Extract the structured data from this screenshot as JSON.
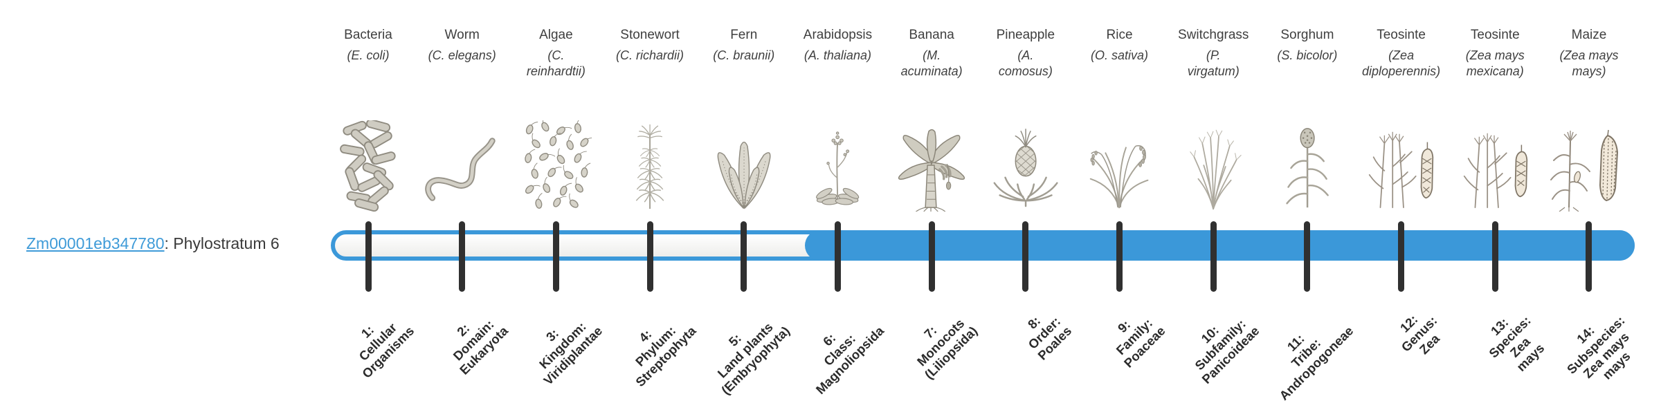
{
  "gene": {
    "id": "Zm00001eb347780",
    "annotation": ": Phylostratum 6",
    "phylostratum": 6
  },
  "colors": {
    "bar_fill": "#3b98d9",
    "track_top": "#ffffff",
    "track_bottom": "#ededeb",
    "tick": "#303030",
    "link": "#3f9bd8",
    "heading_text": "#3f3f3f",
    "label_text": "#2b2b2b"
  },
  "timeline": {
    "filled_from_stratum": 6,
    "strata": [
      {
        "number": 1,
        "organism": "Bacteria",
        "scientific_name": "(E. coli)",
        "icon": "bacteria-illustration",
        "tick_label": "1:\nCellular\nOrganisms"
      },
      {
        "number": 2,
        "organism": "Worm",
        "scientific_name": "(C. elegans)",
        "icon": "worm-illustration",
        "tick_label": "2:\nDomain:\nEukaryota"
      },
      {
        "number": 3,
        "organism": "Algae",
        "scientific_name": "(C.\nreinhardtii)",
        "icon": "algae-illustration",
        "tick_label": "3:\nKingdom:\nViridiplantae"
      },
      {
        "number": 4,
        "organism": "Stonewort",
        "scientific_name": "(C. richardii)",
        "icon": "stonewort-illustration",
        "tick_label": "4:\nPhylum:\nStreptophyta"
      },
      {
        "number": 5,
        "organism": "Fern",
        "scientific_name": "(C. braunii)",
        "icon": "fern-illustration",
        "tick_label": "5:\nLand plants\n(Embryophyta)"
      },
      {
        "number": 6,
        "organism": "Arabidopsis",
        "scientific_name": "(A. thaliana)",
        "icon": "arabidopsis-illustration",
        "tick_label": "6:\nClass:\nMagnoliopsida"
      },
      {
        "number": 7,
        "organism": "Banana",
        "scientific_name": "(M.\nacuminata)",
        "icon": "banana-illustration",
        "tick_label": "7:\nMonocots\n(Liliopsida)"
      },
      {
        "number": 8,
        "organism": "Pineapple",
        "scientific_name": "(A.\ncomosus)",
        "icon": "pineapple-illustration",
        "tick_label": "8:\nOrder:\nPoales"
      },
      {
        "number": 9,
        "organism": "Rice",
        "scientific_name": "(O. sativa)",
        "icon": "rice-illustration",
        "tick_label": "9:\nFamily:\nPoaceae"
      },
      {
        "number": 10,
        "organism": "Switchgrass",
        "scientific_name": "(P.\nvirgatum)",
        "icon": "switchgrass-illustration",
        "tick_label": "10:\nSubfamily:\nPanicoideae"
      },
      {
        "number": 11,
        "organism": "Sorghum",
        "scientific_name": "(S. bicolor)",
        "icon": "sorghum-illustration",
        "tick_label": "11:\nTribe:\nAndropogoneae"
      },
      {
        "number": 12,
        "organism": "Teosinte",
        "scientific_name": "(Zea\ndiploperennis)",
        "icon": "teosinte-diploperennis-illustration",
        "tick_label": "12:\nGenus:\nZea"
      },
      {
        "number": 13,
        "organism": "Teosinte",
        "scientific_name": "(Zea mays\nmexicana)",
        "icon": "teosinte-mexicana-illustration",
        "tick_label": "13:\nSpecies:\nZea\nmays"
      },
      {
        "number": 14,
        "organism": "Maize",
        "scientific_name": "(Zea mays\nmays)",
        "icon": "maize-illustration",
        "tick_label": "14:\nSubspecies:\nZea mays\nmays"
      }
    ]
  }
}
